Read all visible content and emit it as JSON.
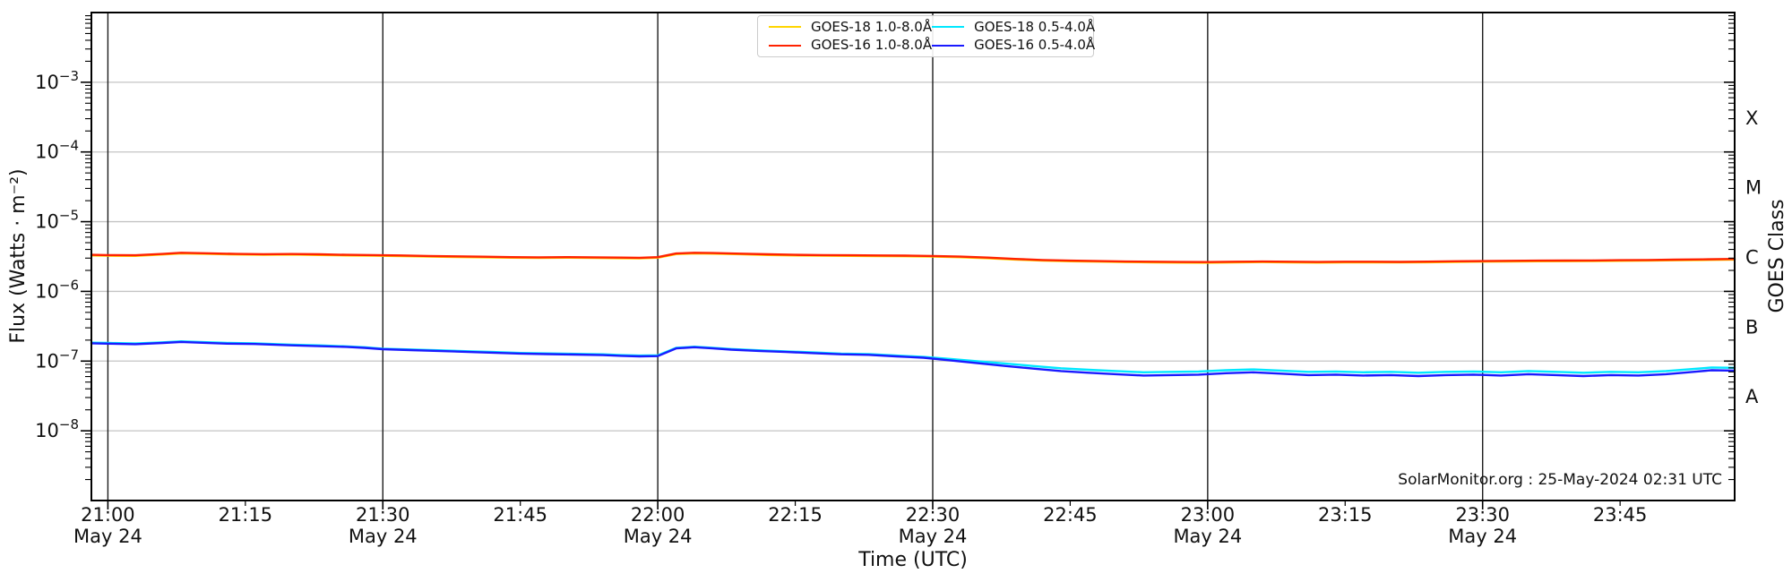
{
  "attribution": "SolarMonitor.org : 25-May-2024 02:31 UTC",
  "chart_data": {
    "type": "line",
    "title": "",
    "xlabel": "Time (UTC)",
    "ylabel": "Flux (Watts · m⁻²)",
    "ylabel_right": "GOES Class",
    "grid": {
      "horizontal": true,
      "vertical": true
    },
    "x_axis": {
      "unit": "minutes after 21:00 UTC, 24-May-2024",
      "range_minutes": [
        -1.8,
        177.5
      ],
      "tick_interval_minutes": 15
    },
    "y_axis": {
      "scale": "log",
      "range": [
        1e-09,
        0.01
      ],
      "tick_exponents": [
        -3,
        -4,
        -5,
        -6,
        -7,
        -8
      ]
    },
    "x_ticks": [
      {
        "t": 0,
        "label": "21:00",
        "date": "May 24"
      },
      {
        "t": 15,
        "label": "21:15"
      },
      {
        "t": 30,
        "label": "21:30",
        "date": "May 24"
      },
      {
        "t": 45,
        "label": "21:45"
      },
      {
        "t": 60,
        "label": "22:00",
        "date": "May 24"
      },
      {
        "t": 75,
        "label": "22:15"
      },
      {
        "t": 90,
        "label": "22:30",
        "date": "May 24"
      },
      {
        "t": 105,
        "label": "22:45"
      },
      {
        "t": 120,
        "label": "23:00",
        "date": "May 24"
      },
      {
        "t": 135,
        "label": "23:15"
      },
      {
        "t": 150,
        "label": "23:30",
        "date": "May 24"
      },
      {
        "t": 165,
        "label": "23:45"
      }
    ],
    "vertical_gridlines_t": [
      0,
      30,
      60,
      90,
      120,
      150
    ],
    "goes_class_labels": [
      {
        "label": "X",
        "flux": 0.000316
      },
      {
        "label": "M",
        "flux": 3.16e-05
      },
      {
        "label": "C",
        "flux": 3.16e-06
      },
      {
        "label": "B",
        "flux": 3.16e-07
      },
      {
        "label": "A",
        "flux": 3.16e-08
      }
    ],
    "legend": {
      "position": "upper center",
      "entries": [
        {
          "label": "GOES-18 1.0-8.0Å",
          "color": "#ffd500"
        },
        {
          "label": "GOES-16 1.0-8.0Å",
          "color": "#ff2200"
        },
        {
          "label": "GOES-18 0.5-4.0Å",
          "color": "#00e8ff"
        },
        {
          "label": "GOES-16 0.5-4.0Å",
          "color": "#1a1aff"
        }
      ]
    },
    "series": [
      {
        "name": "GOES-18 1.0-8.0Å",
        "color": "#ffd500",
        "flux_scale": 1e-06,
        "t": [
          -1.8,
          0,
          3,
          6,
          8,
          11,
          14,
          17,
          20,
          23,
          26,
          29,
          32,
          35,
          38,
          41,
          44,
          47,
          50,
          53,
          56,
          58,
          60,
          62,
          64,
          66,
          69,
          72,
          75,
          78,
          81,
          84,
          87,
          90,
          93,
          96,
          99,
          102,
          105,
          108,
          111,
          114,
          117,
          120,
          123,
          126,
          129,
          132,
          135,
          138,
          141,
          144,
          147,
          150,
          153,
          156,
          159,
          162,
          165,
          168,
          171,
          174,
          177.5
        ],
        "flux": [
          3.28,
          3.25,
          3.23,
          3.38,
          3.51,
          3.45,
          3.38,
          3.35,
          3.37,
          3.33,
          3.28,
          3.25,
          3.21,
          3.16,
          3.12,
          3.08,
          3.04,
          3.02,
          3.04,
          3.02,
          2.99,
          2.97,
          3.04,
          3.43,
          3.51,
          3.48,
          3.41,
          3.33,
          3.28,
          3.25,
          3.23,
          3.21,
          3.19,
          3.16,
          3.09,
          2.99,
          2.86,
          2.76,
          2.7,
          2.67,
          2.63,
          2.61,
          2.59,
          2.58,
          2.61,
          2.63,
          2.61,
          2.59,
          2.61,
          2.61,
          2.6,
          2.62,
          2.65,
          2.67,
          2.69,
          2.7,
          2.71,
          2.72,
          2.74,
          2.76,
          2.79,
          2.82,
          2.86
        ]
      },
      {
        "name": "GOES-16 1.0-8.0Å",
        "color": "#ff2200",
        "flux_scale": 1e-06,
        "t": [
          -1.8,
          0,
          3,
          6,
          8,
          11,
          14,
          17,
          20,
          23,
          26,
          29,
          32,
          35,
          38,
          41,
          44,
          47,
          50,
          53,
          56,
          58,
          60,
          62,
          64,
          66,
          69,
          72,
          75,
          78,
          81,
          84,
          87,
          90,
          93,
          96,
          99,
          102,
          105,
          108,
          111,
          114,
          117,
          120,
          123,
          126,
          129,
          132,
          135,
          138,
          141,
          144,
          147,
          150,
          153,
          156,
          159,
          162,
          165,
          168,
          171,
          174,
          177.5
        ],
        "flux": [
          3.35,
          3.32,
          3.3,
          3.45,
          3.58,
          3.52,
          3.45,
          3.42,
          3.44,
          3.4,
          3.35,
          3.32,
          3.28,
          3.22,
          3.18,
          3.14,
          3.1,
          3.08,
          3.1,
          3.08,
          3.05,
          3.03,
          3.1,
          3.5,
          3.58,
          3.55,
          3.48,
          3.4,
          3.35,
          3.32,
          3.3,
          3.28,
          3.26,
          3.22,
          3.15,
          3.05,
          2.92,
          2.82,
          2.76,
          2.72,
          2.68,
          2.66,
          2.64,
          2.63,
          2.66,
          2.68,
          2.66,
          2.64,
          2.66,
          2.66,
          2.65,
          2.67,
          2.7,
          2.72,
          2.74,
          2.76,
          2.77,
          2.78,
          2.8,
          2.82,
          2.85,
          2.88,
          2.92
        ]
      },
      {
        "name": "GOES-18 0.5-4.0Å",
        "color": "#00e8ff",
        "flux_scale": 1e-07,
        "t": [
          -1.8,
          0,
          3,
          6,
          8,
          10,
          13,
          16,
          18,
          20,
          23,
          26,
          28,
          30,
          33,
          36,
          39,
          42,
          45,
          48,
          51,
          54,
          56,
          58,
          60,
          62,
          64,
          66,
          68,
          71,
          74,
          77,
          80,
          83,
          86,
          89,
          92,
          95,
          98,
          101,
          104,
          107,
          110,
          113,
          116,
          119,
          122,
          125,
          128,
          131,
          134,
          137,
          140,
          143,
          146,
          149,
          152,
          155,
          158,
          161,
          164,
          167,
          170,
          173,
          175,
          177.5
        ],
        "flux": [
          1.84,
          1.82,
          1.79,
          1.86,
          1.92,
          1.88,
          1.82,
          1.8,
          1.76,
          1.72,
          1.68,
          1.63,
          1.58,
          1.51,
          1.47,
          1.43,
          1.39,
          1.35,
          1.31,
          1.29,
          1.27,
          1.25,
          1.22,
          1.2,
          1.21,
          1.55,
          1.61,
          1.55,
          1.49,
          1.43,
          1.38,
          1.33,
          1.28,
          1.26,
          1.2,
          1.15,
          1.07,
          0.99,
          0.92,
          0.85,
          0.79,
          0.75,
          0.72,
          0.69,
          0.7,
          0.71,
          0.74,
          0.76,
          0.73,
          0.7,
          0.71,
          0.69,
          0.7,
          0.68,
          0.7,
          0.71,
          0.69,
          0.72,
          0.7,
          0.68,
          0.7,
          0.69,
          0.72,
          0.77,
          0.81,
          0.8
        ]
      },
      {
        "name": "GOES-16 0.5-4.0Å",
        "color": "#1a1aff",
        "flux_scale": 1e-07,
        "t": [
          -1.8,
          0,
          3,
          6,
          8,
          10,
          13,
          16,
          18,
          20,
          23,
          26,
          28,
          30,
          33,
          36,
          39,
          42,
          45,
          48,
          51,
          54,
          56,
          58,
          60,
          62,
          64,
          66,
          68,
          71,
          74,
          77,
          80,
          83,
          86,
          89,
          92,
          95,
          98,
          101,
          104,
          107,
          110,
          113,
          116,
          119,
          122,
          125,
          128,
          131,
          134,
          137,
          140,
          143,
          146,
          149,
          152,
          155,
          158,
          161,
          164,
          167,
          170,
          173,
          175,
          177.5
        ],
        "flux": [
          1.8,
          1.78,
          1.75,
          1.82,
          1.88,
          1.84,
          1.78,
          1.76,
          1.72,
          1.68,
          1.64,
          1.6,
          1.55,
          1.48,
          1.44,
          1.4,
          1.36,
          1.32,
          1.28,
          1.26,
          1.24,
          1.22,
          1.19,
          1.17,
          1.18,
          1.52,
          1.58,
          1.52,
          1.46,
          1.4,
          1.35,
          1.3,
          1.25,
          1.23,
          1.17,
          1.12,
          1.02,
          0.93,
          0.85,
          0.78,
          0.72,
          0.68,
          0.65,
          0.62,
          0.63,
          0.64,
          0.67,
          0.69,
          0.66,
          0.63,
          0.64,
          0.62,
          0.63,
          0.61,
          0.63,
          0.64,
          0.62,
          0.65,
          0.63,
          0.61,
          0.63,
          0.62,
          0.65,
          0.7,
          0.74,
          0.73
        ]
      }
    ],
    "style": {
      "h_grid_color": "#c4c4c4",
      "v_grid_color": "#1c1c1c",
      "spine_color": "#000000",
      "text_color": "#111111"
    }
  }
}
